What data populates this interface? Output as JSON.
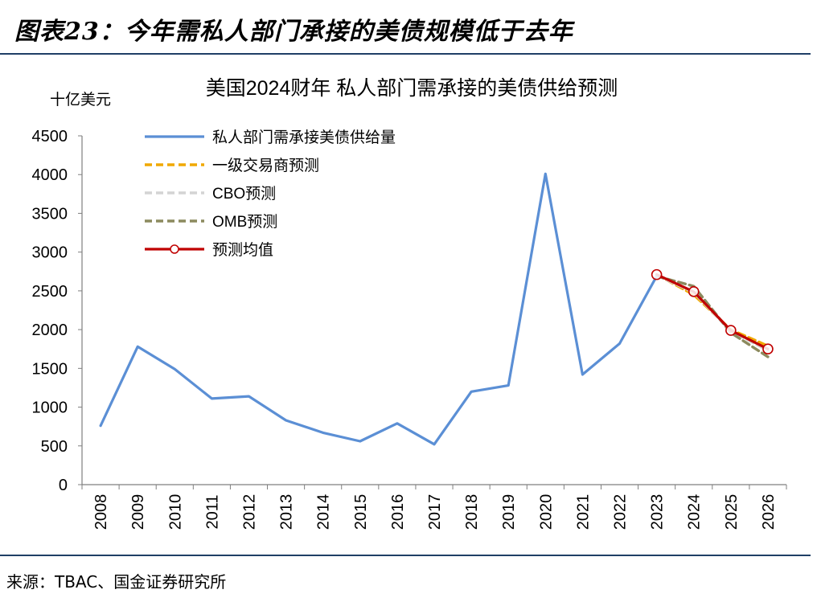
{
  "figure_title": "图表23：今年需私人部门承接的美债规模低于去年",
  "source_note": "来源：TBAC、国金证券研究所",
  "colors": {
    "supply": "#5b8fd5",
    "dealer": "#f0a800",
    "cbo": "#d4d4d4",
    "omb": "#8c8a5e",
    "mean": "#c00000",
    "rule": "#1f3f66"
  },
  "chart_data": {
    "type": "line",
    "title": "美国2024财年 私人部门需承接的美债供给预测",
    "ylabel": "十亿美元",
    "xlabel": "",
    "categories": [
      "2008",
      "2009",
      "2010",
      "2011",
      "2012",
      "2013",
      "2014",
      "2015",
      "2016",
      "2017",
      "2018",
      "2019",
      "2020",
      "2021",
      "2022",
      "2023",
      "2024",
      "2025",
      "2026"
    ],
    "ylim": [
      0,
      4500
    ],
    "yticks": [
      0,
      500,
      1000,
      1500,
      2000,
      2500,
      3000,
      3500,
      4000,
      4500
    ],
    "grid": false,
    "legend_position": "top-left",
    "series": [
      {
        "name": "私人部门需承接美债供给量",
        "style": "solid",
        "color": "#5b8fd5",
        "x": [
          "2008",
          "2009",
          "2010",
          "2011",
          "2012",
          "2013",
          "2014",
          "2015",
          "2016",
          "2017",
          "2018",
          "2019",
          "2020",
          "2021",
          "2022",
          "2023"
        ],
        "values": [
          760,
          1780,
          1490,
          1110,
          1140,
          830,
          670,
          560,
          790,
          520,
          1200,
          1280,
          4010,
          1420,
          1820,
          2690
        ]
      },
      {
        "name": "一级交易商预测",
        "style": "dashed",
        "color": "#f0a800",
        "x": [
          "2023",
          "2024",
          "2025",
          "2026"
        ],
        "values": [
          2710,
          2450,
          2000,
          1790
        ]
      },
      {
        "name": "CBO预测",
        "style": "dashed",
        "color": "#d4d4d4",
        "x": [
          "2023",
          "2024",
          "2025",
          "2026"
        ],
        "values": [
          2700,
          2480,
          1980,
          1730
        ]
      },
      {
        "name": "OMB预测",
        "style": "dashed",
        "color": "#8c8a5e",
        "x": [
          "2023",
          "2024",
          "2025",
          "2026"
        ],
        "values": [
          2690,
          2560,
          1960,
          1650
        ]
      },
      {
        "name": "预测均值",
        "style": "solid-marker",
        "color": "#c00000",
        "x": [
          "2023",
          "2024",
          "2025",
          "2026"
        ],
        "values": [
          2710,
          2490,
          1990,
          1750
        ]
      }
    ]
  }
}
